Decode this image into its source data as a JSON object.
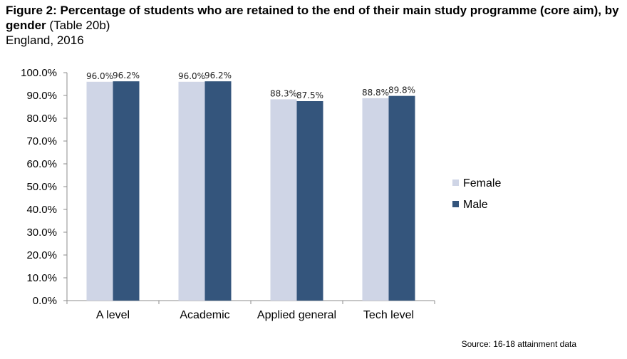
{
  "title": {
    "bold": "Figure 2: Percentage of students who are retained to the end of their main study programme (core aim), by gender",
    "normal": " (Table 20b)",
    "subtitle": "England, 2016"
  },
  "source": "Source: 16-18 attainment data",
  "chart_data": {
    "type": "bar",
    "categories": [
      "A level",
      "Academic",
      "Applied general",
      "Tech level"
    ],
    "series": [
      {
        "name": "Female",
        "values": [
          96.0,
          96.0,
          88.3,
          88.8
        ],
        "labels": [
          "96.0%",
          "96.0%",
          "88.3%",
          "88.8%"
        ],
        "color": "#cfd5e6"
      },
      {
        "name": "Male",
        "values": [
          96.2,
          96.2,
          87.5,
          89.8
        ],
        "labels": [
          "96.2%",
          "96.2%",
          "87.5%",
          "89.8%"
        ],
        "color": "#34557c"
      }
    ],
    "ylim": [
      0,
      100
    ],
    "yticks": [
      "0.0%",
      "10.0%",
      "20.0%",
      "30.0%",
      "40.0%",
      "50.0%",
      "60.0%",
      "70.0%",
      "80.0%",
      "90.0%",
      "100.0%"
    ],
    "xlabel": "",
    "ylabel": "",
    "grid": false,
    "legend_position": "right"
  }
}
